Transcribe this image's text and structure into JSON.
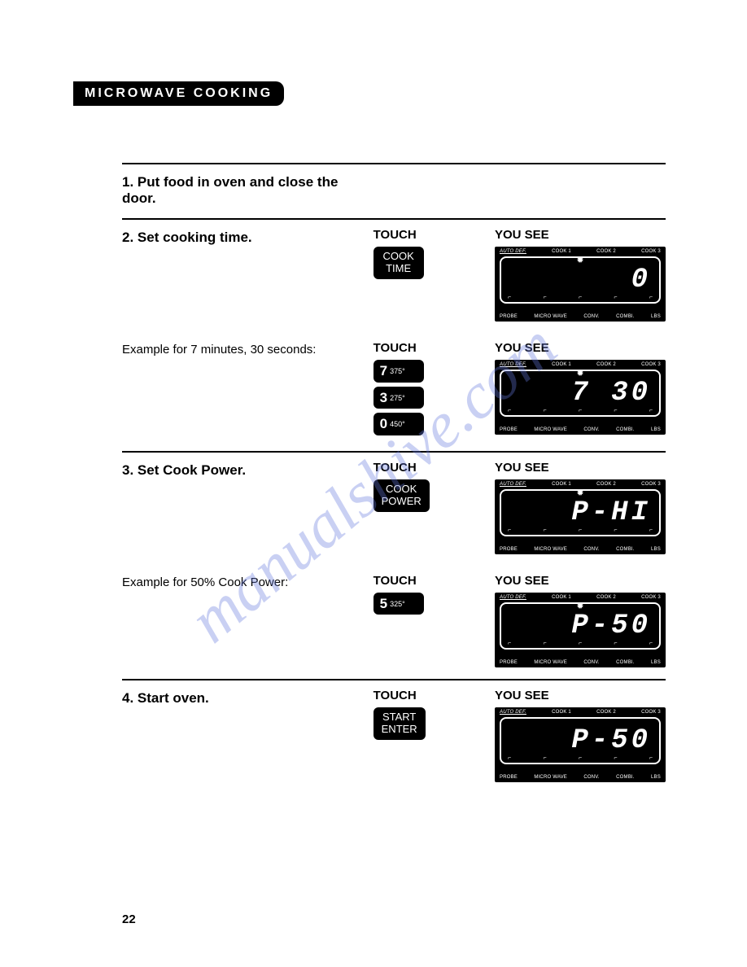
{
  "header": "MICROWAVE COOKING",
  "page_number": "22",
  "watermark": "manualshive.com",
  "labels": {
    "touch": "TOUCH",
    "you_see": "YOU SEE"
  },
  "display_top_labels": [
    "AUTO DEF.",
    "COOK 1",
    "COOK 2",
    "COOK 3"
  ],
  "display_bottom_labels": [
    "PROBE",
    "MICRO WAVE",
    "CONV.",
    "COMBI.",
    "LBS"
  ],
  "steps": {
    "s1": {
      "title": "1. Put food in oven and close the door."
    },
    "s2": {
      "title": "2. Set cooking time.",
      "touch_btn": "COOK\nTIME",
      "display": "0",
      "sub": {
        "text": "Example for 7 minutes, 30 seconds:",
        "buttons": [
          {
            "big": "7",
            "small": "375°"
          },
          {
            "big": "3",
            "small": "275°"
          },
          {
            "big": "0",
            "small": "450°"
          }
        ],
        "display": "7 30"
      }
    },
    "s3": {
      "title": "3. Set Cook Power.",
      "touch_btn": "COOK\nPOWER",
      "display": "P-HI",
      "sub": {
        "text": "Example for 50% Cook Power:",
        "buttons": [
          {
            "big": "5",
            "small": "325°"
          }
        ],
        "display": "P-50"
      }
    },
    "s4": {
      "title": "4. Start oven.",
      "touch_btn": "START\nENTER",
      "display": "P-50"
    }
  },
  "colors": {
    "black": "#000000",
    "white": "#ffffff",
    "watermark": "rgba(100,120,220,0.35)"
  }
}
